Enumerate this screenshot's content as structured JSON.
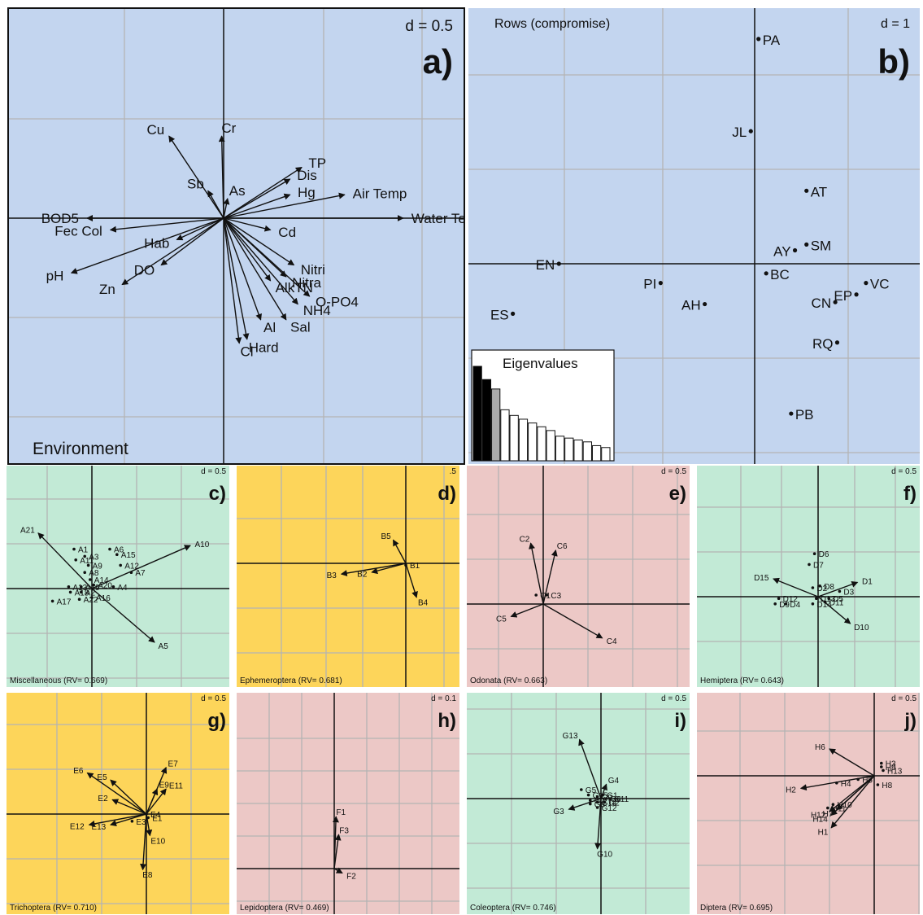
{
  "figure": {
    "panel_a": {
      "d_label": "d = 0.5",
      "panel_letter": "a)",
      "caption": "Environment"
    },
    "panel_b": {
      "d_label": "d = 1",
      "panel_letter": "b)",
      "title": "Rows (compromise)",
      "eig_title": "Eigenvalues"
    }
  },
  "colors": {
    "blue": "#c3d5ef",
    "green": "#c2ead6",
    "yellow": "#fdd55a",
    "pink": "#ecc8c6",
    "grid": "#b4b4b4"
  },
  "chart_data": [
    {
      "id": "a",
      "type": "scatter",
      "kind": "biplot",
      "title": "Environment",
      "scale": "d = 0.5",
      "panel_label": "a)",
      "grid": true,
      "xlim": [
        -1.05,
        1.2
      ],
      "ylim": [
        -1.25,
        1.05
      ],
      "arrows": [
        {
          "label": "Cr",
          "x": -0.01,
          "y": 0.42
        },
        {
          "label": "Cu",
          "x": -0.28,
          "y": 0.42
        },
        {
          "label": "Sb",
          "x": -0.08,
          "y": 0.14
        },
        {
          "label": "As",
          "x": 0.02,
          "y": 0.1
        },
        {
          "label": "TP",
          "x": 0.4,
          "y": 0.26
        },
        {
          "label": "Dis",
          "x": 0.34,
          "y": 0.2
        },
        {
          "label": "Hg",
          "x": 0.34,
          "y": 0.12
        },
        {
          "label": "Air Temp",
          "x": 0.62,
          "y": 0.12
        },
        {
          "label": "Water Temp",
          "x": 0.92,
          "y": 0.0
        },
        {
          "label": "Cd",
          "x": 0.24,
          "y": -0.06
        },
        {
          "label": "BOD5",
          "x": -0.7,
          "y": 0.0
        },
        {
          "label": "Fec Col",
          "x": -0.58,
          "y": -0.06
        },
        {
          "label": "Hab",
          "x": -0.24,
          "y": -0.11
        },
        {
          "label": "pH",
          "x": -0.78,
          "y": -0.28
        },
        {
          "label": "Zn",
          "x": -0.52,
          "y": -0.34
        },
        {
          "label": "DO",
          "x": -0.32,
          "y": -0.24
        },
        {
          "label": "Nitri",
          "x": 0.36,
          "y": -0.24
        },
        {
          "label": "Nitra",
          "x": 0.32,
          "y": -0.3
        },
        {
          "label": "AlkTN",
          "x": 0.24,
          "y": -0.32
        },
        {
          "label": "O-PO4",
          "x": 0.44,
          "y": -0.4
        },
        {
          "label": "NH4",
          "x": 0.38,
          "y": -0.44
        },
        {
          "label": "Sal",
          "x": 0.32,
          "y": -0.52
        },
        {
          "label": "Al",
          "x": 0.19,
          "y": -0.52
        },
        {
          "label": "Hard",
          "x": 0.12,
          "y": -0.62
        },
        {
          "label": "Cl",
          "x": 0.08,
          "y": -0.64
        }
      ]
    },
    {
      "id": "b",
      "type": "scatter",
      "kind": "ordination",
      "title": "Rows (compromise)",
      "scale": "d = 1",
      "panel_label": "b)",
      "grid": true,
      "xlim": [
        -3.1,
        1.7
      ],
      "ylim": [
        -2.4,
        2.6
      ],
      "points": [
        {
          "label": "PA",
          "x": 0.04,
          "y": 2.34
        },
        {
          "label": "JL",
          "x": -0.04,
          "y": 1.38
        },
        {
          "label": "AT",
          "x": 0.54,
          "y": 0.76
        },
        {
          "label": "SM",
          "x": 0.54,
          "y": 0.2
        },
        {
          "label": "AY",
          "x": 0.42,
          "y": 0.14
        },
        {
          "label": "BC",
          "x": 0.12,
          "y": -0.1
        },
        {
          "label": "VC",
          "x": 1.16,
          "y": -0.2
        },
        {
          "label": "EP",
          "x": 1.06,
          "y": -0.32
        },
        {
          "label": "CN",
          "x": 0.84,
          "y": -0.4
        },
        {
          "label": "RQ",
          "x": 0.86,
          "y": -0.82
        },
        {
          "label": "PB",
          "x": 0.38,
          "y": -1.56
        },
        {
          "label": "EN",
          "x": -2.04,
          "y": 0.0
        },
        {
          "label": "PI",
          "x": -0.98,
          "y": -0.2
        },
        {
          "label": "AH",
          "x": -0.52,
          "y": -0.42
        },
        {
          "label": "ES",
          "x": -2.52,
          "y": -0.52
        }
      ],
      "eigenvalues": [
        1.0,
        0.86,
        0.76,
        0.54,
        0.48,
        0.44,
        0.4,
        0.36,
        0.32,
        0.26,
        0.24,
        0.22,
        0.2,
        0.16,
        0.14
      ]
    },
    {
      "id": "c",
      "type": "scatter",
      "kind": "biplot",
      "title": "Miscellaneous (RV= 0.669)",
      "scale": "d = 0.5",
      "panel_label": "c)",
      "grid": true,
      "xlim": [
        -0.85,
        1.35
      ],
      "ylim": [
        -0.95,
        1.1
      ],
      "arrows": [
        {
          "label": "A21",
          "x": -0.6,
          "y": 0.62
        },
        {
          "label": "A10",
          "x": 1.1,
          "y": 0.48
        },
        {
          "label": "A5",
          "x": 0.7,
          "y": -0.6
        }
      ],
      "points": [
        {
          "label": "A1",
          "x": -0.2,
          "y": 0.44
        },
        {
          "label": "A3",
          "x": -0.08,
          "y": 0.36
        },
        {
          "label": "A11",
          "x": -0.18,
          "y": 0.32
        },
        {
          "label": "A6",
          "x": 0.2,
          "y": 0.44
        },
        {
          "label": "A15",
          "x": 0.28,
          "y": 0.38
        },
        {
          "label": "A9",
          "x": -0.04,
          "y": 0.26
        },
        {
          "label": "A12",
          "x": 0.32,
          "y": 0.26
        },
        {
          "label": "A8",
          "x": -0.08,
          "y": 0.18
        },
        {
          "label": "A7",
          "x": 0.44,
          "y": 0.18
        },
        {
          "label": "A14",
          "x": -0.02,
          "y": 0.1
        },
        {
          "label": "A20",
          "x": 0.02,
          "y": 0.04
        },
        {
          "label": "A4",
          "x": 0.24,
          "y": 0.02
        },
        {
          "label": "A13",
          "x": -0.26,
          "y": 0.02
        },
        {
          "label": "A19",
          "x": -0.12,
          "y": 0.02
        },
        {
          "label": "A18",
          "x": -0.24,
          "y": -0.04
        },
        {
          "label": "A2",
          "x": -0.12,
          "y": -0.04
        },
        {
          "label": "A16",
          "x": 0.0,
          "y": -0.1
        },
        {
          "label": "A22",
          "x": -0.14,
          "y": -0.12
        },
        {
          "label": "A17",
          "x": -0.44,
          "y": -0.14
        }
      ]
    },
    {
      "id": "d",
      "type": "scatter",
      "kind": "biplot",
      "title": "Ephemeroptera (RV= 0.681)",
      "scale": ".5",
      "panel_label": "d)",
      "grid": true,
      "xlim": [
        -0.85,
        0.45
      ],
      "ylim": [
        -0.95,
        0.95
      ],
      "arrows": [
        {
          "label": "B5",
          "x": -0.14,
          "y": 0.26
        },
        {
          "label": "B3",
          "x": -0.72,
          "y": -0.12
        },
        {
          "label": "B2",
          "x": -0.38,
          "y": -0.1
        },
        {
          "label": "B4",
          "x": 0.12,
          "y": -0.38
        }
      ],
      "points": [
        {
          "label": "B1",
          "x": 0.0,
          "y": -0.02
        }
      ]
    },
    {
      "id": "e",
      "type": "scatter",
      "kind": "biplot",
      "title": "Odonata (RV= 0.663)",
      "scale": "d = 0.5",
      "panel_label": "e)",
      "grid": true,
      "xlim": [
        -0.5,
        0.85
      ],
      "ylim": [
        -0.85,
        1.0
      ],
      "arrows": [
        {
          "label": "C2",
          "x": -0.14,
          "y": 0.68
        },
        {
          "label": "C6",
          "x": 0.14,
          "y": 0.6
        },
        {
          "label": "C5",
          "x": -0.36,
          "y": -0.14
        },
        {
          "label": "C4",
          "x": 0.66,
          "y": -0.38
        }
      ],
      "points": [
        {
          "label": "C1",
          "x": -0.08,
          "y": 0.1
        },
        {
          "label": "C3",
          "x": 0.04,
          "y": 0.1
        }
      ]
    },
    {
      "id": "f",
      "type": "scatter",
      "kind": "biplot",
      "title": "Hemiptera (RV= 0.643)",
      "scale": "d = 0.5",
      "panel_label": "f)",
      "grid": true,
      "xlim": [
        -0.85,
        0.65
      ],
      "ylim": [
        -0.75,
        0.95
      ],
      "arrows": [
        {
          "label": "D15",
          "x": -0.5,
          "y": 0.2
        },
        {
          "label": "D1",
          "x": 0.44,
          "y": 0.16
        },
        {
          "label": "D10",
          "x": 0.36,
          "y": -0.3
        }
      ],
      "points": [
        {
          "label": "D6",
          "x": -0.04,
          "y": 0.48
        },
        {
          "label": "D7",
          "x": -0.1,
          "y": 0.36
        },
        {
          "label": "D2",
          "x": -0.06,
          "y": 0.1
        },
        {
          "label": "D8",
          "x": 0.02,
          "y": 0.12
        },
        {
          "label": "D3",
          "x": 0.24,
          "y": 0.06
        },
        {
          "label": "D12",
          "x": -0.44,
          "y": -0.02
        },
        {
          "label": "D13",
          "x": -0.02,
          "y": -0.02
        },
        {
          "label": "D5",
          "x": 0.12,
          "y": -0.02
        },
        {
          "label": "D11",
          "x": 0.08,
          "y": -0.06
        },
        {
          "label": "D14",
          "x": -0.06,
          "y": -0.08
        },
        {
          "label": "D9",
          "x": -0.48,
          "y": -0.08
        },
        {
          "label": "D4",
          "x": -0.36,
          "y": -0.08
        }
      ]
    },
    {
      "id": "g",
      "type": "scatter",
      "kind": "biplot",
      "title": "Trichoptera (RV= 0.710)",
      "scale": "d = 0.5",
      "panel_label": "g)",
      "grid": true,
      "xlim": [
        -0.9,
        0.55
      ],
      "ylim": [
        -0.95,
        0.95
      ],
      "arrows": [
        {
          "label": "E6",
          "x": -0.66,
          "y": 0.46
        },
        {
          "label": "E5",
          "x": -0.4,
          "y": 0.38
        },
        {
          "label": "E7",
          "x": 0.22,
          "y": 0.52
        },
        {
          "label": "E9",
          "x": 0.12,
          "y": 0.28
        },
        {
          "label": "E11",
          "x": 0.22,
          "y": 0.28
        },
        {
          "label": "E2",
          "x": -0.38,
          "y": 0.16
        },
        {
          "label": "E12",
          "x": -0.64,
          "y": -0.12
        },
        {
          "label": "E13",
          "x": -0.4,
          "y": -0.12
        },
        {
          "label": "E8",
          "x": -0.04,
          "y": -0.62
        },
        {
          "label": "E10",
          "x": 0.04,
          "y": -0.24
        }
      ],
      "points": [
        {
          "label": "E4",
          "x": 0.0,
          "y": 0.0
        },
        {
          "label": "E1",
          "x": 0.02,
          "y": -0.04
        },
        {
          "label": "E3",
          "x": -0.16,
          "y": -0.08
        }
      ]
    },
    {
      "id": "h",
      "type": "scatter",
      "kind": "biplot",
      "title": "Lepidoptera (RV= 0.469)",
      "scale": "d = 0.1",
      "panel_label": "h)",
      "grid": true,
      "xlim": [
        -0.45,
        0.45
      ],
      "ylim": [
        -0.5,
        0.75
      ],
      "arrows": [
        {
          "label": "F1",
          "x": 0.02,
          "y": 0.58
        },
        {
          "label": "F3",
          "x": 0.05,
          "y": 0.38
        },
        {
          "label": "F2",
          "x": 0.09,
          "y": -0.05
        }
      ]
    },
    {
      "id": "i",
      "type": "scatter",
      "kind": "biplot",
      "title": "Coleoptera (RV= 0.746)",
      "scale": "d = 0.5",
      "panel_label": "i)",
      "grid": true,
      "xlim": [
        -0.75,
        0.55
      ],
      "ylim": [
        -0.9,
        0.9
      ],
      "arrows": [
        {
          "label": "G13",
          "x": -0.24,
          "y": 0.66
        },
        {
          "label": "G4",
          "x": 0.06,
          "y": 0.16
        },
        {
          "label": "G10",
          "x": -0.04,
          "y": -0.56
        },
        {
          "label": "G3",
          "x": -0.36,
          "y": -0.12
        }
      ],
      "points": [
        {
          "label": "G5",
          "x": -0.22,
          "y": 0.1
        },
        {
          "label": "G15",
          "x": -0.14,
          "y": 0.04
        },
        {
          "label": "G1",
          "x": 0.02,
          "y": 0.04
        },
        {
          "label": "G9",
          "x": -0.04,
          "y": 0.02
        },
        {
          "label": "G6",
          "x": 0.06,
          "y": 0.0
        },
        {
          "label": "G11",
          "x": 0.1,
          "y": 0.0
        },
        {
          "label": "G7",
          "x": -0.12,
          "y": -0.02
        },
        {
          "label": "G14",
          "x": -0.04,
          "y": -0.04
        },
        {
          "label": "G2",
          "x": 0.04,
          "y": -0.04
        },
        {
          "label": "G8",
          "x": -0.12,
          "y": -0.06
        },
        {
          "label": "G12",
          "x": -0.04,
          "y": -0.1
        }
      ]
    },
    {
      "id": "j",
      "type": "scatter",
      "kind": "biplot",
      "title": "Diptera (RV= 0.695)",
      "scale": "d = 0.5",
      "panel_label": "j)",
      "grid": true,
      "xlim": [
        -0.95,
        0.25
      ],
      "ylim": [
        -0.95,
        0.45
      ],
      "arrows": [
        {
          "label": "H6",
          "x": -0.5,
          "y": 0.3
        },
        {
          "label": "H2",
          "x": -0.82,
          "y": -0.14
        },
        {
          "label": "H14",
          "x": -0.48,
          "y": -0.44
        },
        {
          "label": "H1",
          "x": -0.48,
          "y": -0.58
        },
        {
          "label": "H7",
          "x": -0.42,
          "y": -0.38
        },
        {
          "label": "H12",
          "x": -0.5,
          "y": -0.4
        }
      ],
      "points": [
        {
          "label": "H3",
          "x": 0.08,
          "y": 0.14
        },
        {
          "label": "H9",
          "x": 0.08,
          "y": 0.1
        },
        {
          "label": "H13",
          "x": 0.1,
          "y": 0.06
        },
        {
          "label": "H4",
          "x": -0.42,
          "y": -0.08
        },
        {
          "label": "H5",
          "x": -0.18,
          "y": -0.04
        },
        {
          "label": "H8",
          "x": 0.04,
          "y": -0.1
        },
        {
          "label": "H10",
          "x": -0.46,
          "y": -0.32
        },
        {
          "label": "H11",
          "x": -0.52,
          "y": -0.36
        }
      ]
    }
  ]
}
